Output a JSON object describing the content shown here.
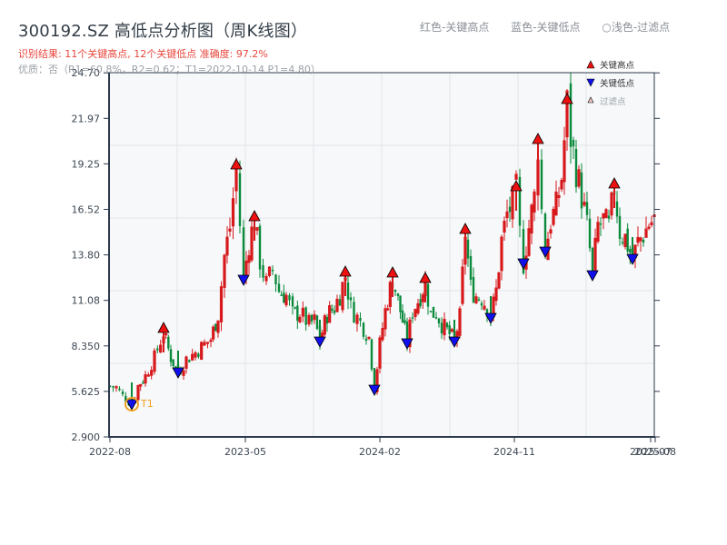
{
  "header": {
    "title": "300192.SZ 高低点分析图（周K线图）",
    "summary": "识别结果: 11个关键高点, 12个关键低点  准确度: 97.2%",
    "quality": "优质：否（R1=60.8%，R2=0.62；T1=2022-10-14 P1=4.80）",
    "legend_top": [
      "红色-关键高点",
      "蓝色-关键低点",
      "○浅色-过滤点"
    ]
  },
  "colors": {
    "up": "#d7191c",
    "down": "#0a8a3a",
    "high_marker": "#ee1111",
    "low_marker": "#1010ee",
    "filtered_marker": "#f5c6c6",
    "t1_ring": "#f0a020",
    "axis": "#2c3a4b",
    "grid": "#e3e6ea",
    "plot_bg": "#f6f8fa"
  },
  "chart_data": {
    "type": "candlestick",
    "title": "300192.SZ 高低点分析图（周K线图）",
    "xlabel": "",
    "ylabel": "",
    "ylim": [
      2.9,
      24.7
    ],
    "y_ticks": [
      "2.900",
      "5.625",
      "8.350",
      "11.08",
      "13.80",
      "16.52",
      "19.25",
      "21.97",
      "24.70"
    ],
    "x_ticks": [
      "2022-08",
      "2023-05",
      "2024-02",
      "2024-11",
      "2025-07",
      "2025-08"
    ],
    "grid": true,
    "legend": [
      {
        "label": "关键高点",
        "marker": "triangle-up",
        "color": "#ee1111"
      },
      {
        "label": "关键低点",
        "marker": "triangle-down",
        "color": "#1010ee"
      },
      {
        "label": "过滤点",
        "marker": "triangle-up",
        "color": "#f5c6c6"
      }
    ],
    "legend_position": "upper right",
    "annotation": {
      "label": "T1",
      "date": "2022-10-14",
      "price": 4.8
    },
    "key_highs": [
      {
        "approx_date": "2022-12",
        "price": 9.1
      },
      {
        "approx_date": "2023-04",
        "price": 18.9
      },
      {
        "approx_date": "2023-05",
        "price": 15.8
      },
      {
        "approx_date": "2023-09",
        "price": 12.5
      },
      {
        "approx_date": "2024-03",
        "price": 12.4
      },
      {
        "approx_date": "2024-05",
        "price": 12.1
      },
      {
        "approx_date": "2024-07",
        "price": 15.1
      },
      {
        "approx_date": "2024-11",
        "price": 17.6
      },
      {
        "approx_date": "2024-12",
        "price": 20.4
      },
      {
        "approx_date": "2025-02",
        "price": 22.8
      },
      {
        "approx_date": "2025-05",
        "price": 17.8
      }
    ],
    "key_lows": [
      {
        "approx_date": "2022-10-14",
        "price": 4.8
      },
      {
        "approx_date": "2023-01",
        "price": 6.7
      },
      {
        "approx_date": "2023-05",
        "price": 12.3
      },
      {
        "approx_date": "2023-08",
        "price": 8.6
      },
      {
        "approx_date": "2024-02",
        "price": 5.7
      },
      {
        "approx_date": "2024-04",
        "price": 8.5
      },
      {
        "approx_date": "2024-06",
        "price": 8.6
      },
      {
        "approx_date": "2024-09",
        "price": 10.0
      },
      {
        "approx_date": "2024-11",
        "price": 13.3
      },
      {
        "approx_date": "2025-01",
        "price": 14.0
      },
      {
        "approx_date": "2025-04",
        "price": 12.6
      },
      {
        "approx_date": "2025-06",
        "price": 13.5
      }
    ],
    "path_points": [
      [
        121,
        5.9
      ],
      [
        128,
        5.8
      ],
      [
        135,
        5.3
      ],
      [
        145,
        4.8
      ],
      [
        152,
        5.9
      ],
      [
        160,
        6.5
      ],
      [
        170,
        7.6
      ],
      [
        180,
        9.1
      ],
      [
        188,
        7.6
      ],
      [
        196,
        6.7
      ],
      [
        205,
        7.5
      ],
      [
        215,
        7.9
      ],
      [
        225,
        8.4
      ],
      [
        232,
        8.7
      ],
      [
        240,
        10.2
      ],
      [
        247,
        13.7
      ],
      [
        253,
        15.4
      ],
      [
        260,
        18.9
      ],
      [
        264,
        15.6
      ],
      [
        268,
        12.3
      ],
      [
        274,
        14.5
      ],
      [
        280,
        15.8
      ],
      [
        286,
        13.4
      ],
      [
        293,
        12.0
      ],
      [
        300,
        12.9
      ],
      [
        307,
        11.6
      ],
      [
        315,
        11.3
      ],
      [
        322,
        10.2
      ],
      [
        330,
        10.3
      ],
      [
        340,
        9.6
      ],
      [
        346,
        9.8
      ],
      [
        352,
        8.6
      ],
      [
        360,
        10.2
      ],
      [
        368,
        10.6
      ],
      [
        374,
        11.4
      ],
      [
        380,
        12.5
      ],
      [
        386,
        10.6
      ],
      [
        393,
        10.0
      ],
      [
        400,
        9.4
      ],
      [
        406,
        8.8
      ],
      [
        412,
        5.7
      ],
      [
        418,
        8.4
      ],
      [
        424,
        10.4
      ],
      [
        432,
        12.4
      ],
      [
        438,
        11.0
      ],
      [
        443,
        9.8
      ],
      [
        448,
        8.5
      ],
      [
        454,
        10.4
      ],
      [
        460,
        11.0
      ],
      [
        468,
        12.1
      ],
      [
        474,
        10.2
      ],
      [
        480,
        10.3
      ],
      [
        486,
        9.6
      ],
      [
        492,
        9.2
      ],
      [
        500,
        8.6
      ],
      [
        506,
        10.0
      ],
      [
        512,
        15.1
      ],
      [
        518,
        11.8
      ],
      [
        524,
        11.3
      ],
      [
        530,
        11.2
      ],
      [
        536,
        10.6
      ],
      [
        540,
        10.0
      ],
      [
        546,
        11.6
      ],
      [
        552,
        14.6
      ],
      [
        558,
        16.2
      ],
      [
        564,
        16.9
      ],
      [
        568,
        17.6
      ],
      [
        572,
        15.0
      ],
      [
        576,
        13.3
      ],
      [
        582,
        15.4
      ],
      [
        588,
        17.2
      ],
      [
        592,
        20.4
      ],
      [
        596,
        16.4
      ],
      [
        600,
        14.0
      ],
      [
        606,
        15.8
      ],
      [
        612,
        16.6
      ],
      [
        618,
        18.4
      ],
      [
        624,
        22.8
      ],
      [
        628,
        20.8
      ],
      [
        634,
        18.9
      ],
      [
        640,
        17.3
      ],
      [
        646,
        15.5
      ],
      [
        652,
        12.6
      ],
      [
        658,
        15.5
      ],
      [
        664,
        15.8
      ],
      [
        670,
        15.4
      ],
      [
        676,
        17.8
      ],
      [
        682,
        15.2
      ],
      [
        688,
        14.8
      ],
      [
        696,
        13.5
      ],
      [
        702,
        14.5
      ],
      [
        708,
        15.0
      ],
      [
        714,
        15.6
      ],
      [
        720,
        15.9
      ]
    ]
  }
}
